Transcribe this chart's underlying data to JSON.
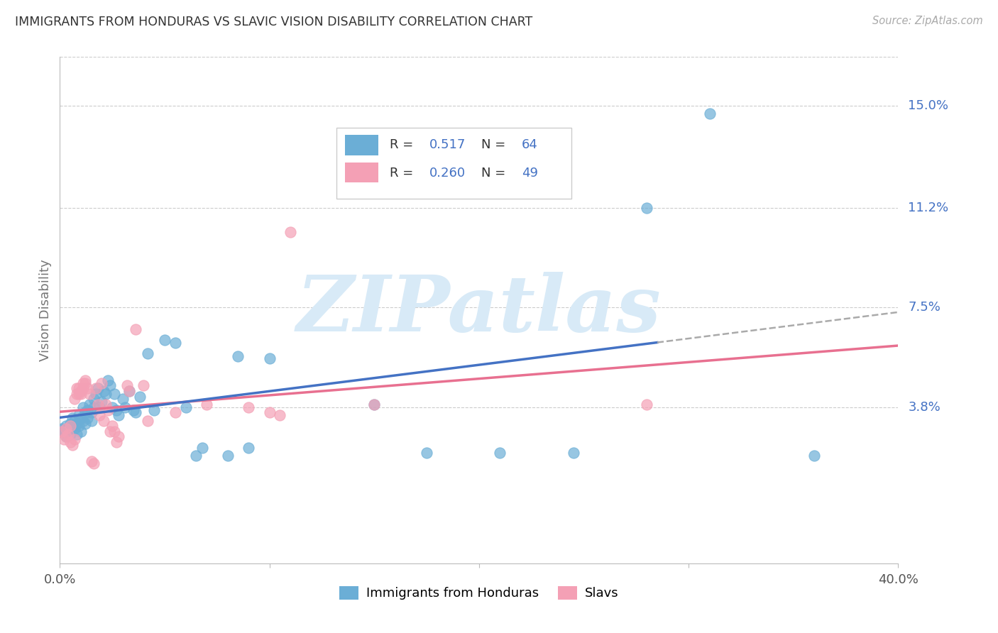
{
  "title": "IMMIGRANTS FROM HONDURAS VS SLAVIC VISION DISABILITY CORRELATION CHART",
  "source": "Source: ZipAtlas.com",
  "ylabel": "Vision Disability",
  "yticks": [
    "15.0%",
    "11.2%",
    "7.5%",
    "3.8%"
  ],
  "ytick_vals": [
    0.15,
    0.112,
    0.075,
    0.038
  ],
  "xlim": [
    0.0,
    0.4
  ],
  "ylim": [
    -0.02,
    0.168
  ],
  "blue_color": "#6baed6",
  "pink_color": "#f4a0b5",
  "blue_line_color": "#4472c4",
  "pink_line_color": "#e87090",
  "dash_color": "#aaaaaa",
  "R_blue": "0.517",
  "N_blue": "64",
  "R_pink": "0.260",
  "N_pink": "49",
  "legend_label_blue": "Immigrants from Honduras",
  "legend_label_pink": "Slavs",
  "blue_scatter": [
    [
      0.001,
      0.03
    ],
    [
      0.002,
      0.029
    ],
    [
      0.003,
      0.031
    ],
    [
      0.003,
      0.027
    ],
    [
      0.004,
      0.03
    ],
    [
      0.005,
      0.032
    ],
    [
      0.005,
      0.028
    ],
    [
      0.006,
      0.031
    ],
    [
      0.006,
      0.034
    ],
    [
      0.007,
      0.033
    ],
    [
      0.007,
      0.03
    ],
    [
      0.008,
      0.032
    ],
    [
      0.008,
      0.028
    ],
    [
      0.009,
      0.035
    ],
    [
      0.009,
      0.031
    ],
    [
      0.01,
      0.034
    ],
    [
      0.01,
      0.029
    ],
    [
      0.011,
      0.033
    ],
    [
      0.011,
      0.038
    ],
    [
      0.012,
      0.036
    ],
    [
      0.012,
      0.032
    ],
    [
      0.013,
      0.037
    ],
    [
      0.013,
      0.034
    ],
    [
      0.014,
      0.039
    ],
    [
      0.015,
      0.036
    ],
    [
      0.015,
      0.033
    ],
    [
      0.016,
      0.041
    ],
    [
      0.016,
      0.038
    ],
    [
      0.017,
      0.043
    ],
    [
      0.018,
      0.045
    ],
    [
      0.019,
      0.038
    ],
    [
      0.02,
      0.04
    ],
    [
      0.021,
      0.044
    ],
    [
      0.022,
      0.043
    ],
    [
      0.023,
      0.048
    ],
    [
      0.024,
      0.046
    ],
    [
      0.025,
      0.038
    ],
    [
      0.026,
      0.043
    ],
    [
      0.027,
      0.037
    ],
    [
      0.028,
      0.035
    ],
    [
      0.03,
      0.041
    ],
    [
      0.031,
      0.038
    ],
    [
      0.033,
      0.044
    ],
    [
      0.035,
      0.037
    ],
    [
      0.036,
      0.036
    ],
    [
      0.038,
      0.042
    ],
    [
      0.042,
      0.058
    ],
    [
      0.045,
      0.037
    ],
    [
      0.05,
      0.063
    ],
    [
      0.055,
      0.062
    ],
    [
      0.06,
      0.038
    ],
    [
      0.065,
      0.02
    ],
    [
      0.068,
      0.023
    ],
    [
      0.08,
      0.02
    ],
    [
      0.085,
      0.057
    ],
    [
      0.09,
      0.023
    ],
    [
      0.1,
      0.056
    ],
    [
      0.15,
      0.039
    ],
    [
      0.175,
      0.021
    ],
    [
      0.21,
      0.021
    ],
    [
      0.245,
      0.021
    ],
    [
      0.28,
      0.112
    ],
    [
      0.31,
      0.147
    ],
    [
      0.36,
      0.02
    ]
  ],
  "pink_scatter": [
    [
      0.001,
      0.029
    ],
    [
      0.002,
      0.026
    ],
    [
      0.003,
      0.03
    ],
    [
      0.003,
      0.027
    ],
    [
      0.004,
      0.028
    ],
    [
      0.005,
      0.025
    ],
    [
      0.005,
      0.031
    ],
    [
      0.006,
      0.024
    ],
    [
      0.007,
      0.026
    ],
    [
      0.007,
      0.041
    ],
    [
      0.008,
      0.043
    ],
    [
      0.008,
      0.045
    ],
    [
      0.009,
      0.043
    ],
    [
      0.009,
      0.045
    ],
    [
      0.01,
      0.044
    ],
    [
      0.01,
      0.043
    ],
    [
      0.011,
      0.047
    ],
    [
      0.011,
      0.045
    ],
    [
      0.012,
      0.048
    ],
    [
      0.012,
      0.047
    ],
    [
      0.013,
      0.045
    ],
    [
      0.014,
      0.043
    ],
    [
      0.015,
      0.018
    ],
    [
      0.016,
      0.017
    ],
    [
      0.017,
      0.045
    ],
    [
      0.018,
      0.039
    ],
    [
      0.019,
      0.035
    ],
    [
      0.02,
      0.047
    ],
    [
      0.021,
      0.033
    ],
    [
      0.022,
      0.039
    ],
    [
      0.023,
      0.037
    ],
    [
      0.024,
      0.029
    ],
    [
      0.025,
      0.031
    ],
    [
      0.026,
      0.029
    ],
    [
      0.027,
      0.025
    ],
    [
      0.028,
      0.027
    ],
    [
      0.032,
      0.046
    ],
    [
      0.033,
      0.044
    ],
    [
      0.036,
      0.067
    ],
    [
      0.04,
      0.046
    ],
    [
      0.042,
      0.033
    ],
    [
      0.055,
      0.036
    ],
    [
      0.07,
      0.039
    ],
    [
      0.09,
      0.038
    ],
    [
      0.1,
      0.036
    ],
    [
      0.105,
      0.035
    ],
    [
      0.11,
      0.103
    ],
    [
      0.15,
      0.039
    ],
    [
      0.28,
      0.039
    ]
  ],
  "background_color": "#ffffff",
  "grid_color": "#cccccc",
  "text_color_blue": "#4472c4",
  "text_color_title": "#333333",
  "watermark_color": "#d8eaf7"
}
